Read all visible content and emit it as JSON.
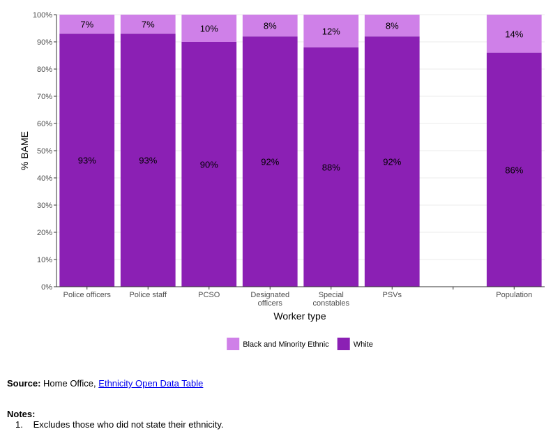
{
  "chart_data": {
    "type": "bar",
    "stacked": true,
    "categories": [
      "Police officers",
      "Police staff",
      "PCSO",
      "Designated officers",
      "Special constables",
      "PSVs",
      "",
      "Population"
    ],
    "category_lines": [
      [
        "Police officers"
      ],
      [
        "Police staff"
      ],
      [
        "PCSO"
      ],
      [
        "Designated",
        "officers"
      ],
      [
        "Special",
        "constables"
      ],
      [
        "PSVs"
      ],
      [],
      [
        "Population"
      ]
    ],
    "series": [
      {
        "name": "White",
        "values": [
          93,
          93,
          90,
          92,
          88,
          92,
          null,
          86
        ],
        "labels": [
          "93%",
          "93%",
          "90%",
          "92%",
          "88%",
          "92%",
          "",
          "86%"
        ],
        "color": "#8b20b4"
      },
      {
        "name": "Black and Minority Ethnic",
        "values": [
          7,
          7,
          10,
          8,
          12,
          8,
          null,
          14
        ],
        "labels": [
          "7%",
          "7%",
          "10%",
          "8%",
          "12%",
          "8%",
          "",
          "14%"
        ],
        "color": "#cf80e8"
      }
    ],
    "xlabel": "Worker type",
    "ylabel": "% BAME",
    "ylim": [
      0,
      100
    ],
    "yticks": [
      "0%",
      "10%",
      "20%",
      "30%",
      "40%",
      "50%",
      "60%",
      "70%",
      "80%",
      "90%",
      "100%"
    ],
    "grid": true,
    "legend_position": "bottom",
    "legend": [
      {
        "name": "Black and Minority Ethnic",
        "color": "#cf80e8"
      },
      {
        "name": "White",
        "color": "#8b20b4"
      }
    ]
  },
  "source": {
    "label": "Source:",
    "text": "Home Office,",
    "link_text": "Ethnicity Open Data Table"
  },
  "notes": {
    "title": "Notes:",
    "items": [
      {
        "num": "1.",
        "text": "Excludes those who did not state their ethnicity."
      }
    ]
  }
}
